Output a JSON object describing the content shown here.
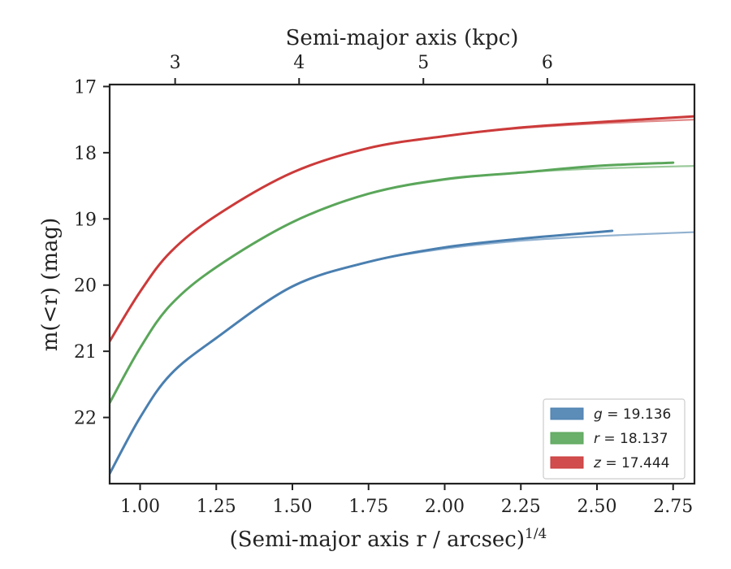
{
  "chart_data": {
    "type": "line",
    "xlabel": "(Semi-major axis r / arcsec)",
    "xlabel_exponent": "1/4",
    "ylabel": "m(<r) (mag)",
    "top_xlabel": "Semi-major axis (kpc)",
    "xlim": [
      0.9,
      2.82
    ],
    "ylim": [
      23.0,
      16.97
    ],
    "y_inverted": true,
    "x_ticks": [
      "1.00",
      "1.25",
      "1.50",
      "1.75",
      "2.00",
      "2.25",
      "2.50",
      "2.75"
    ],
    "y_ticks": [
      "17",
      "18",
      "19",
      "20",
      "21",
      "22"
    ],
    "top_ticks": [
      "3",
      "4",
      "5",
      "6"
    ],
    "top_tick_positions_x": [
      1.115,
      1.522,
      1.93,
      2.337
    ],
    "grid": false,
    "legend_placement": "lower-right",
    "series": [
      {
        "name": "g = 19.136",
        "legend_var": "g",
        "legend_value": "= 19.136",
        "color": "#4a7fb0",
        "x": [
          0.9,
          1.0,
          1.1,
          1.25,
          1.5,
          1.75,
          2.0,
          2.25,
          2.5,
          2.55
        ],
        "y": [
          22.85,
          22.0,
          21.35,
          20.8,
          20.02,
          19.65,
          19.43,
          19.3,
          19.2,
          19.18
        ],
        "model_x": [
          0.9,
          1.0,
          1.1,
          1.25,
          1.5,
          1.75,
          2.0,
          2.25,
          2.5,
          2.82
        ],
        "model_y": [
          22.85,
          22.0,
          21.35,
          20.8,
          20.02,
          19.65,
          19.45,
          19.33,
          19.26,
          19.2
        ]
      },
      {
        "name": "r = 18.137",
        "legend_var": "r",
        "legend_value": "= 18.137",
        "color": "#5aa65a",
        "x": [
          0.9,
          1.0,
          1.1,
          1.25,
          1.5,
          1.75,
          2.0,
          2.25,
          2.5,
          2.75
        ],
        "y": [
          21.78,
          20.95,
          20.3,
          19.73,
          19.05,
          18.62,
          18.4,
          18.3,
          18.2,
          18.15
        ],
        "model_x": [
          0.9,
          1.0,
          1.1,
          1.25,
          1.5,
          1.75,
          2.0,
          2.25,
          2.5,
          2.82
        ],
        "model_y": [
          21.78,
          20.95,
          20.3,
          19.73,
          19.05,
          18.62,
          18.41,
          18.3,
          18.24,
          18.2
        ]
      },
      {
        "name": "z = 17.444",
        "legend_var": "z",
        "legend_value": "= 17.444",
        "color": "#cc3a3a",
        "x": [
          0.9,
          1.0,
          1.1,
          1.25,
          1.5,
          1.75,
          2.0,
          2.25,
          2.5,
          2.82
        ],
        "y": [
          20.85,
          20.1,
          19.5,
          18.95,
          18.3,
          17.93,
          17.75,
          17.62,
          17.54,
          17.45
        ],
        "model_x": [
          0.9,
          1.0,
          1.1,
          1.25,
          1.5,
          1.75,
          2.0,
          2.25,
          2.5,
          2.82
        ],
        "model_y": [
          20.85,
          20.1,
          19.5,
          18.95,
          18.3,
          17.93,
          17.75,
          17.63,
          17.56,
          17.5
        ]
      }
    ]
  }
}
